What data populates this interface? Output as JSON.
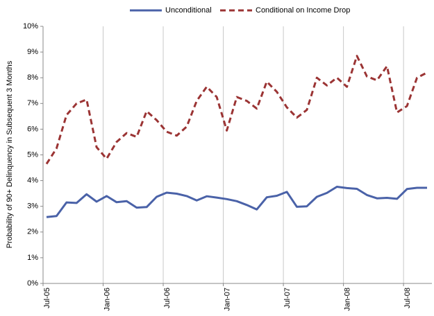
{
  "chart_data": {
    "type": "line",
    "y_label": "Probability of 90+ Delinquency in Subsequent 3 Months",
    "categories": [
      "Jul-05",
      null,
      null,
      null,
      null,
      null,
      "Jan-06",
      null,
      null,
      null,
      null,
      null,
      "Jul-06",
      null,
      null,
      null,
      null,
      null,
      "Jan-07",
      null,
      null,
      null,
      null,
      null,
      "Jul-07",
      null,
      null,
      null,
      null,
      null,
      "Jan-08",
      null,
      null,
      null,
      null,
      null,
      "Jul-08",
      null,
      null
    ],
    "series": [
      {
        "name": "Unconditional",
        "color": "#4a62a8",
        "dash": "solid",
        "values": [
          2.58,
          2.62,
          3.15,
          3.13,
          3.47,
          3.18,
          3.4,
          3.16,
          3.2,
          2.95,
          2.97,
          3.37,
          3.53,
          3.49,
          3.4,
          3.23,
          3.39,
          3.34,
          3.28,
          3.2,
          3.05,
          2.88,
          3.35,
          3.41,
          3.56,
          2.98,
          3.0,
          3.37,
          3.52,
          3.76,
          3.71,
          3.68,
          3.44,
          3.31,
          3.33,
          3.29,
          3.67,
          3.72,
          3.72
        ]
      },
      {
        "name": "Conditional on Income Drop",
        "color": "#9b3434",
        "dash": "dashed",
        "values": [
          4.65,
          5.25,
          6.55,
          7.0,
          7.15,
          5.3,
          4.85,
          5.5,
          5.85,
          5.7,
          6.7,
          6.35,
          5.9,
          5.75,
          6.1,
          7.1,
          7.65,
          7.25,
          5.95,
          7.25,
          7.1,
          6.8,
          7.85,
          7.45,
          6.85,
          6.45,
          6.75,
          8.0,
          7.7,
          8.0,
          7.65,
          8.85,
          8.05,
          7.9,
          8.45,
          6.65,
          6.9,
          8.0,
          8.2
        ]
      }
    ],
    "ylim": [
      0,
      10
    ],
    "yticks": [
      {
        "value": 0,
        "label": "0%"
      },
      {
        "value": 1,
        "label": "1%"
      },
      {
        "value": 2,
        "label": "2%"
      },
      {
        "value": 3,
        "label": "3%"
      },
      {
        "value": 4,
        "label": "4%"
      },
      {
        "value": 5,
        "label": "5%"
      },
      {
        "value": 6,
        "label": "6%"
      },
      {
        "value": 7,
        "label": "7%"
      },
      {
        "value": 8,
        "label": "8%"
      },
      {
        "value": 9,
        "label": "9%"
      },
      {
        "value": 10,
        "label": "10%"
      }
    ],
    "grid": "x",
    "legend": "top"
  }
}
